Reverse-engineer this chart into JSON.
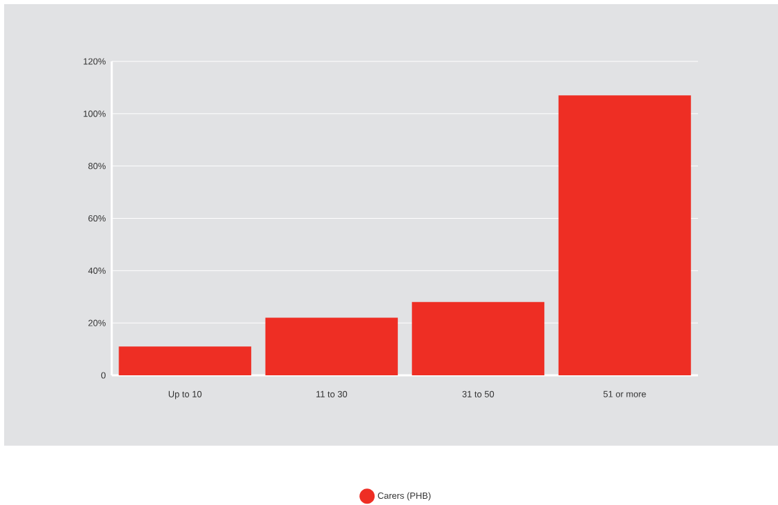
{
  "chart_data": {
    "type": "bar",
    "categories": [
      "Up to 10",
      "11 to 30",
      "31 to 50",
      "51 or more"
    ],
    "series": [
      {
        "name": "Carers (PHB)",
        "color": "#ee2e24",
        "values": [
          11,
          22,
          28,
          107
        ]
      }
    ],
    "ylim": [
      0,
      120
    ],
    "yticks": [
      0,
      {
        "value": 20,
        "label": "20%"
      },
      {
        "value": 40,
        "label": "40%"
      },
      {
        "value": 60,
        "label": "60%"
      },
      {
        "value": 80,
        "label": "80%"
      },
      {
        "value": 100,
        "label": "100%"
      },
      {
        "value": 120,
        "label": "120%"
      }
    ],
    "grid": "y",
    "legend": "bottom",
    "marker": "circle"
  }
}
